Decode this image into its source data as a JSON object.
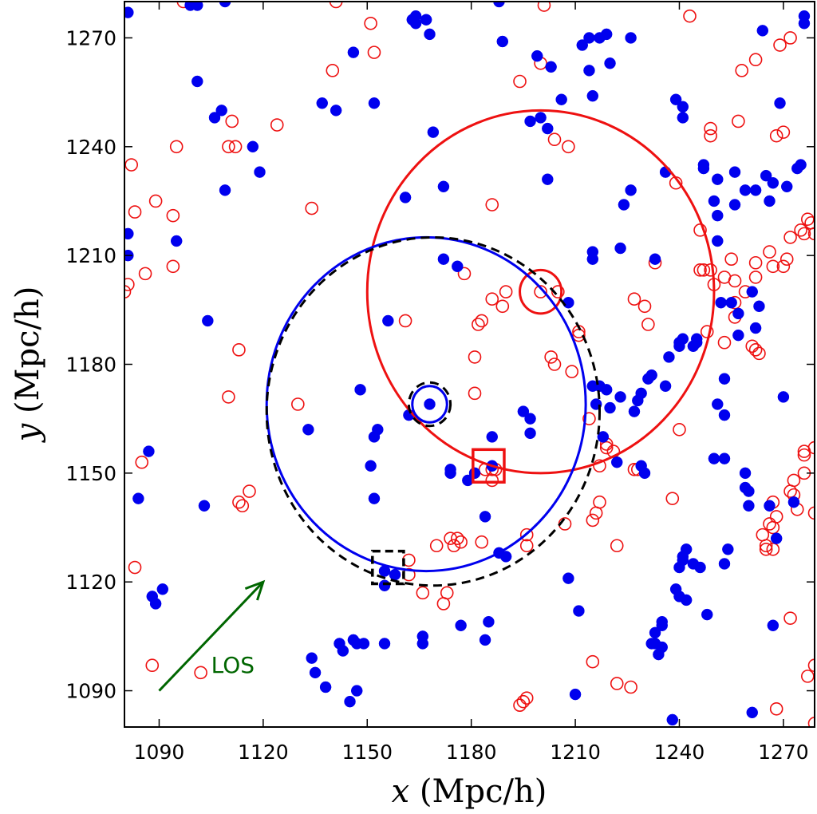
{
  "chart_data": {
    "type": "scatter",
    "title": "",
    "xlabel": "x (Mpc/h)",
    "ylabel": "y (Mpc/h)",
    "xlabel_var": "x",
    "xlabel_unit": " (Mpc/h)",
    "ylabel_var": "y",
    "ylabel_unit": " (Mpc/h)",
    "xlim": [
      1080,
      1279
    ],
    "ylim": [
      1080,
      1280
    ],
    "xticks": [
      1090,
      1120,
      1150,
      1180,
      1210,
      1240,
      1270
    ],
    "yticks": [
      1090,
      1120,
      1150,
      1180,
      1210,
      1240,
      1270
    ],
    "grid": false,
    "legend": "none",
    "colors": {
      "blue_series": "#0000ee",
      "red_series": "#ee1111",
      "dashed": "#000000",
      "arrow": "#006600"
    },
    "blue_points": [
      [
        1081,
        1277
      ],
      [
        1081,
        1216
      ],
      [
        1081,
        1210
      ],
      [
        1084,
        1143
      ],
      [
        1087,
        1156
      ],
      [
        1088,
        1116
      ],
      [
        1089,
        1114
      ],
      [
        1091,
        1118
      ],
      [
        1095,
        1214
      ],
      [
        1099,
        1279
      ],
      [
        1101,
        1279
      ],
      [
        1101,
        1258
      ],
      [
        1103,
        1141
      ],
      [
        1104,
        1192
      ],
      [
        1106,
        1248
      ],
      [
        1108,
        1250
      ],
      [
        1109,
        1228
      ],
      [
        1109,
        1280
      ],
      [
        1117,
        1240
      ],
      [
        1119,
        1233
      ],
      [
        1133,
        1162
      ],
      [
        1134,
        1099
      ],
      [
        1135,
        1095
      ],
      [
        1137,
        1252
      ],
      [
        1138,
        1091
      ],
      [
        1141,
        1250
      ],
      [
        1142,
        1103
      ],
      [
        1143,
        1101
      ],
      [
        1145,
        1087
      ],
      [
        1146,
        1104
      ],
      [
        1147,
        1103
      ],
      [
        1147,
        1090
      ],
      [
        1149,
        1103
      ],
      [
        1152,
        1252
      ],
      [
        1146,
        1266
      ],
      [
        1148,
        1173
      ],
      [
        1151,
        1152
      ],
      [
        1152,
        1143
      ],
      [
        1152,
        1160
      ],
      [
        1153,
        1162
      ],
      [
        1155,
        1123
      ],
      [
        1155,
        1119
      ],
      [
        1156,
        1192
      ],
      [
        1155,
        1103
      ],
      [
        1158,
        1122
      ],
      [
        1161,
        1226
      ],
      [
        1162,
        1166
      ],
      [
        1163,
        1275
      ],
      [
        1164,
        1274
      ],
      [
        1164,
        1276
      ],
      [
        1167,
        1275
      ],
      [
        1168,
        1271
      ],
      [
        1169,
        1244
      ],
      [
        1166,
        1105
      ],
      [
        1166,
        1103
      ],
      [
        1168,
        1169
      ],
      [
        1172,
        1209
      ],
      [
        1172,
        1229
      ],
      [
        1174,
        1150
      ],
      [
        1174,
        1151
      ],
      [
        1176,
        1207
      ],
      [
        1177,
        1108
      ],
      [
        1179,
        1148
      ],
      [
        1181,
        1150
      ],
      [
        1184,
        1138
      ],
      [
        1184,
        1104
      ],
      [
        1185,
        1109
      ],
      [
        1186,
        1152
      ],
      [
        1186,
        1160
      ],
      [
        1188,
        1128
      ],
      [
        1190,
        1127
      ],
      [
        1189,
        1269
      ],
      [
        1188,
        1280
      ],
      [
        1195,
        1167
      ],
      [
        1197,
        1161
      ],
      [
        1197,
        1165
      ],
      [
        1197,
        1247
      ],
      [
        1200,
        1248
      ],
      [
        1199,
        1265
      ],
      [
        1202,
        1245
      ],
      [
        1202,
        1231
      ],
      [
        1203,
        1262
      ],
      [
        1206,
        1253
      ],
      [
        1208,
        1197
      ],
      [
        1208,
        1121
      ],
      [
        1210,
        1089
      ],
      [
        1211,
        1112
      ],
      [
        1212,
        1268
      ],
      [
        1214,
        1261
      ],
      [
        1214,
        1270
      ],
      [
        1215,
        1254
      ],
      [
        1216,
        1169
      ],
      [
        1215,
        1174
      ],
      [
        1215,
        1209
      ],
      [
        1215,
        1211
      ],
      [
        1217,
        1174
      ],
      [
        1217,
        1270
      ],
      [
        1218,
        1160
      ],
      [
        1219,
        1271
      ],
      [
        1219,
        1173
      ],
      [
        1220,
        1263
      ],
      [
        1220,
        1168
      ],
      [
        1222,
        1153
      ],
      [
        1223,
        1171
      ],
      [
        1223,
        1212
      ],
      [
        1224,
        1224
      ],
      [
        1226,
        1228
      ],
      [
        1226,
        1270
      ],
      [
        1227,
        1167
      ],
      [
        1228,
        1170
      ],
      [
        1229,
        1172
      ],
      [
        1229,
        1152
      ],
      [
        1230,
        1150
      ],
      [
        1231,
        1176
      ],
      [
        1232,
        1177
      ],
      [
        1232,
        1103
      ],
      [
        1233,
        1106
      ],
      [
        1233,
        1209
      ],
      [
        1233,
        1103
      ],
      [
        1234,
        1100
      ],
      [
        1235,
        1108
      ],
      [
        1235,
        1102
      ],
      [
        1235,
        1109
      ],
      [
        1236,
        1174
      ],
      [
        1236,
        1233
      ],
      [
        1237,
        1182
      ],
      [
        1238,
        1082
      ],
      [
        1239,
        1118
      ],
      [
        1239,
        1253
      ],
      [
        1240,
        1186
      ],
      [
        1240,
        1116
      ],
      [
        1240,
        1185
      ],
      [
        1240,
        1124
      ],
      [
        1241,
        1248
      ],
      [
        1241,
        1187
      ],
      [
        1241,
        1126
      ],
      [
        1241,
        1251
      ],
      [
        1241,
        1127
      ],
      [
        1242,
        1115
      ],
      [
        1242,
        1129
      ],
      [
        1244,
        1185
      ],
      [
        1244,
        1125
      ],
      [
        1245,
        1186
      ],
      [
        1245,
        1187
      ],
      [
        1246,
        1124
      ],
      [
        1247,
        1235
      ],
      [
        1247,
        1234
      ],
      [
        1248,
        1111
      ],
      [
        1250,
        1225
      ],
      [
        1250,
        1154
      ],
      [
        1251,
        1214
      ],
      [
        1251,
        1231
      ],
      [
        1251,
        1221
      ],
      [
        1251,
        1169
      ],
      [
        1252,
        1197
      ],
      [
        1253,
        1176
      ],
      [
        1253,
        1166
      ],
      [
        1253,
        1125
      ],
      [
        1253,
        1154
      ],
      [
        1254,
        1129
      ],
      [
        1255,
        1197
      ],
      [
        1256,
        1224
      ],
      [
        1256,
        1233
      ],
      [
        1257,
        1194
      ],
      [
        1257,
        1188
      ],
      [
        1259,
        1146
      ],
      [
        1259,
        1228
      ],
      [
        1259,
        1150
      ],
      [
        1260,
        1145
      ],
      [
        1260,
        1141
      ],
      [
        1261,
        1084
      ],
      [
        1261,
        1200
      ],
      [
        1262,
        1228
      ],
      [
        1262,
        1190
      ],
      [
        1263,
        1196
      ],
      [
        1264,
        1272
      ],
      [
        1265,
        1232
      ],
      [
        1266,
        1141
      ],
      [
        1266,
        1225
      ],
      [
        1267,
        1108
      ],
      [
        1267,
        1230
      ],
      [
        1268,
        1132
      ],
      [
        1269,
        1252
      ],
      [
        1270,
        1171
      ],
      [
        1271,
        1229
      ],
      [
        1273,
        1142
      ],
      [
        1274,
        1234
      ],
      [
        1275,
        1235
      ],
      [
        1276,
        1276
      ],
      [
        1276,
        1274
      ]
    ],
    "red_points": [
      [
        1080,
        1200
      ],
      [
        1081,
        1202
      ],
      [
        1082,
        1235
      ],
      [
        1083,
        1222
      ],
      [
        1083,
        1124
      ],
      [
        1085,
        1153
      ],
      [
        1086,
        1205
      ],
      [
        1088,
        1097
      ],
      [
        1089,
        1225
      ],
      [
        1094,
        1221
      ],
      [
        1094,
        1207
      ],
      [
        1095,
        1240
      ],
      [
        1097,
        1280
      ],
      [
        1102,
        1095
      ],
      [
        1110,
        1240
      ],
      [
        1110,
        1171
      ],
      [
        1111,
        1247
      ],
      [
        1112,
        1240
      ],
      [
        1113,
        1184
      ],
      [
        1113,
        1142
      ],
      [
        1114,
        1141
      ],
      [
        1116,
        1145
      ],
      [
        1124,
        1246
      ],
      [
        1130,
        1169
      ],
      [
        1134,
        1223
      ],
      [
        1140,
        1261
      ],
      [
        1141,
        1280
      ],
      [
        1151,
        1274
      ],
      [
        1152,
        1266
      ],
      [
        1161,
        1192
      ],
      [
        1162,
        1122
      ],
      [
        1162,
        1126
      ],
      [
        1166,
        1117
      ],
      [
        1170,
        1130
      ],
      [
        1172,
        1114
      ],
      [
        1173,
        1117
      ],
      [
        1174,
        1132
      ],
      [
        1175,
        1130
      ],
      [
        1176,
        1132
      ],
      [
        1177,
        1131
      ],
      [
        1178,
        1205
      ],
      [
        1181,
        1172
      ],
      [
        1181,
        1182
      ],
      [
        1182,
        1191
      ],
      [
        1183,
        1131
      ],
      [
        1183,
        1192
      ],
      [
        1184,
        1151
      ],
      [
        1186,
        1148
      ],
      [
        1186,
        1151
      ],
      [
        1186,
        1224
      ],
      [
        1186,
        1198
      ],
      [
        1187,
        1151
      ],
      [
        1189,
        1196
      ],
      [
        1190,
        1200
      ],
      [
        1194,
        1258
      ],
      [
        1194,
        1086
      ],
      [
        1195,
        1087
      ],
      [
        1196,
        1088
      ],
      [
        1196,
        1130
      ],
      [
        1196,
        1133
      ],
      [
        1200,
        1263
      ],
      [
        1200,
        1200
      ],
      [
        1201,
        1279
      ],
      [
        1203,
        1182
      ],
      [
        1204,
        1180
      ],
      [
        1204,
        1242
      ],
      [
        1205,
        1200
      ],
      [
        1207,
        1136
      ],
      [
        1208,
        1240
      ],
      [
        1209,
        1178
      ],
      [
        1211,
        1189
      ],
      [
        1211,
        1188
      ],
      [
        1214,
        1165
      ],
      [
        1215,
        1098
      ],
      [
        1215,
        1137
      ],
      [
        1216,
        1139
      ],
      [
        1217,
        1142
      ],
      [
        1217,
        1152
      ],
      [
        1219,
        1158
      ],
      [
        1219,
        1157
      ],
      [
        1221,
        1156
      ],
      [
        1222,
        1092
      ],
      [
        1222,
        1130
      ],
      [
        1226,
        1091
      ],
      [
        1227,
        1198
      ],
      [
        1227,
        1151
      ],
      [
        1228,
        1151
      ],
      [
        1230,
        1196
      ],
      [
        1231,
        1191
      ],
      [
        1233,
        1208
      ],
      [
        1238,
        1143
      ],
      [
        1239,
        1230
      ],
      [
        1240,
        1162
      ],
      [
        1243,
        1276
      ],
      [
        1246,
        1217
      ],
      [
        1246,
        1206
      ],
      [
        1247,
        1206
      ],
      [
        1248,
        1189
      ],
      [
        1249,
        1245
      ],
      [
        1249,
        1243
      ],
      [
        1249,
        1206
      ],
      [
        1250,
        1202
      ],
      [
        1253,
        1204
      ],
      [
        1253,
        1186
      ],
      [
        1255,
        1209
      ],
      [
        1256,
        1197
      ],
      [
        1256,
        1193
      ],
      [
        1256,
        1203
      ],
      [
        1257,
        1247
      ],
      [
        1258,
        1261
      ],
      [
        1259,
        1200
      ],
      [
        1261,
        1185
      ],
      [
        1262,
        1204
      ],
      [
        1262,
        1184
      ],
      [
        1262,
        1264
      ],
      [
        1262,
        1208
      ],
      [
        1263,
        1183
      ],
      [
        1264,
        1133
      ],
      [
        1265,
        1130
      ],
      [
        1265,
        1129
      ],
      [
        1266,
        1136
      ],
      [
        1266,
        1211
      ],
      [
        1267,
        1207
      ],
      [
        1267,
        1135
      ],
      [
        1267,
        1142
      ],
      [
        1267,
        1129
      ],
      [
        1268,
        1138
      ],
      [
        1268,
        1243
      ],
      [
        1268,
        1085
      ],
      [
        1269,
        1268
      ],
      [
        1270,
        1244
      ],
      [
        1270,
        1207
      ],
      [
        1271,
        1209
      ],
      [
        1272,
        1110
      ],
      [
        1272,
        1215
      ],
      [
        1272,
        1145
      ],
      [
        1272,
        1270
      ],
      [
        1273,
        1144
      ],
      [
        1273,
        1148
      ],
      [
        1274,
        1140
      ],
      [
        1275,
        1217
      ],
      [
        1276,
        1156
      ],
      [
        1276,
        1216
      ],
      [
        1276,
        1150
      ],
      [
        1276,
        1155
      ],
      [
        1277,
        1220
      ],
      [
        1277,
        1094
      ],
      [
        1278,
        1219
      ],
      [
        1279,
        1097
      ],
      [
        1279,
        1081
      ],
      [
        1279,
        1216
      ],
      [
        1279,
        1139
      ],
      [
        1279,
        1157
      ]
    ],
    "circles": [
      {
        "name": "red",
        "cx": 1200,
        "cy": 1200,
        "r": 50,
        "style": "solid",
        "color": "#ee1111"
      },
      {
        "name": "red-small",
        "cx": 1200,
        "cy": 1200,
        "r": 6,
        "style": "solid",
        "color": "#ee1111"
      },
      {
        "name": "blue",
        "cx": 1167,
        "cy": 1169,
        "r": 46,
        "rx_scale": 1.0,
        "style": "solid",
        "color": "#0000ee"
      },
      {
        "name": "black-dashed",
        "cx": 1169,
        "cy": 1167,
        "r": 48,
        "style": "dashed",
        "color": "#000000"
      },
      {
        "name": "blue-small",
        "cx": 1168,
        "cy": 1169,
        "r": 5,
        "style": "solid",
        "color": "#0000ee"
      },
      {
        "name": "black-small-dashed",
        "cx": 1168,
        "cy": 1169,
        "r": 6,
        "style": "dashed",
        "color": "#000000"
      }
    ],
    "squares": [
      {
        "name": "red-square",
        "cx": 1185,
        "cy": 1152,
        "half": 4.5,
        "style": "solid",
        "color": "#ee1111"
      },
      {
        "name": "black-dashed-square",
        "cx": 1156,
        "cy": 1124,
        "half": 4.5,
        "style": "dashed",
        "color": "#000000"
      }
    ],
    "arrow": {
      "label": "LOS",
      "from": [
        1090,
        1090
      ],
      "to": [
        1120,
        1120
      ],
      "color": "#006600"
    }
  }
}
